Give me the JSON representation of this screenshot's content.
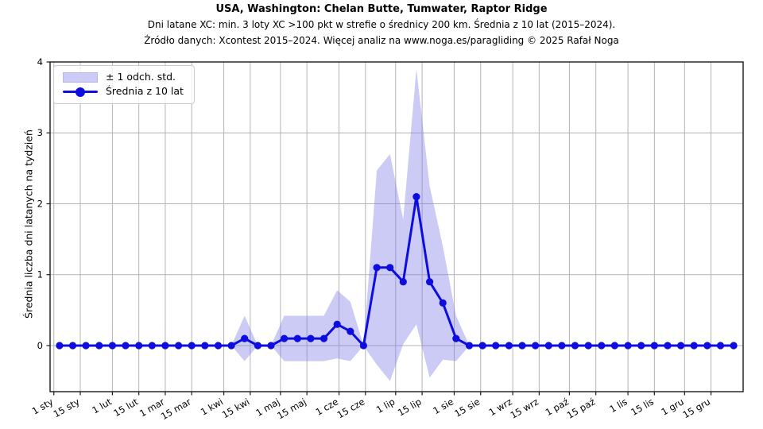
{
  "chart_data": {
    "type": "line",
    "title": "USA, Washington: Chelan Butte, Tumwater, Raptor Ridge",
    "subtitle": "Dni latane XC: min. 3 loty XC >100 pkt w strefie o średnicy 200 km. Średnia z 10 lat (2015–2024).",
    "source": "Źródło danych: Xcontest 2015–2024. Więcej analiz na www.noga.es/paragliding © 2025 Rafał Noga",
    "ylabel": "Średnia liczba dni latanych na tydzień",
    "xlabel": "",
    "legend": [
      {
        "type": "band",
        "label": "± 1 odch. std."
      },
      {
        "type": "line",
        "label": "Średnia z 10 lat"
      }
    ],
    "legend_position": "upper-left",
    "grid": true,
    "ylim": [
      -0.65,
      4
    ],
    "xlim_days": [
      -1,
      366
    ],
    "yticks": [
      0,
      1,
      2,
      3,
      4
    ],
    "xticks": [
      {
        "day": 1,
        "label": "1 sty"
      },
      {
        "day": 15,
        "label": "15 sty"
      },
      {
        "day": 32,
        "label": "1 lut"
      },
      {
        "day": 46,
        "label": "15 lut"
      },
      {
        "day": 60,
        "label": "1 mar"
      },
      {
        "day": 74,
        "label": "15 mar"
      },
      {
        "day": 91,
        "label": "1 kwi"
      },
      {
        "day": 105,
        "label": "15 kwi"
      },
      {
        "day": 121,
        "label": "1 maj"
      },
      {
        "day": 135,
        "label": "15 maj"
      },
      {
        "day": 152,
        "label": "1 cze"
      },
      {
        "day": 166,
        "label": "15 cze"
      },
      {
        "day": 182,
        "label": "1 lip"
      },
      {
        "day": 196,
        "label": "15 lip"
      },
      {
        "day": 213,
        "label": "1 sie"
      },
      {
        "day": 227,
        "label": "15 sie"
      },
      {
        "day": 244,
        "label": "1 wrz"
      },
      {
        "day": 258,
        "label": "15 wrz"
      },
      {
        "day": 274,
        "label": "1 paź"
      },
      {
        "day": 288,
        "label": "15 paź"
      },
      {
        "day": 305,
        "label": "1 lis"
      },
      {
        "day": 319,
        "label": "15 lis"
      },
      {
        "day": 335,
        "label": "1 gru"
      },
      {
        "day": 349,
        "label": "15 gru"
      }
    ],
    "series": [
      {
        "name": "Średnia z 10 lat",
        "x_days": [
          4,
          11,
          18,
          25,
          32,
          39,
          46,
          53,
          60,
          67,
          74,
          81,
          88,
          95,
          102,
          109,
          116,
          123,
          130,
          137,
          144,
          151,
          158,
          165,
          172,
          179,
          186,
          193,
          200,
          207,
          214,
          221,
          228,
          235,
          242,
          249,
          256,
          263,
          270,
          277,
          284,
          291,
          298,
          305,
          312,
          319,
          326,
          333,
          340,
          347,
          354,
          361
        ],
        "mean": [
          0,
          0,
          0,
          0,
          0,
          0,
          0,
          0,
          0,
          0,
          0,
          0,
          0,
          0,
          0.1,
          0,
          0,
          0.1,
          0.1,
          0.1,
          0.1,
          0.3,
          0.2,
          0,
          1.1,
          1.1,
          0.9,
          2.1,
          0.9,
          0.6,
          0.1,
          0,
          0,
          0,
          0,
          0,
          0,
          0,
          0,
          0,
          0,
          0,
          0,
          0,
          0,
          0,
          0,
          0,
          0,
          0,
          0,
          0
        ],
        "std": [
          0,
          0,
          0,
          0,
          0,
          0,
          0,
          0,
          0,
          0,
          0,
          0,
          0,
          0,
          0.32,
          0,
          0,
          0.32,
          0.32,
          0.32,
          0.32,
          0.48,
          0.42,
          0,
          1.37,
          1.6,
          0.88,
          1.8,
          1.35,
          0.8,
          0.32,
          0,
          0,
          0,
          0,
          0,
          0,
          0,
          0,
          0,
          0,
          0,
          0,
          0,
          0,
          0,
          0,
          0,
          0,
          0,
          0,
          0
        ]
      }
    ],
    "colors": {
      "line": "#0d0de0",
      "band_fill": "rgba(125,125,230,0.40)",
      "grid": "#b3b3b3",
      "frame": "#1a1a1a",
      "text": "#000000"
    }
  }
}
